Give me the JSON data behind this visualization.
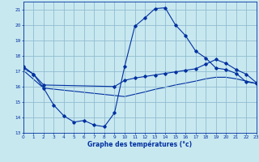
{
  "xlabel": "Graphe des températures (°c)",
  "bg_color": "#c8e8f0",
  "grid_color": "#90bcd0",
  "line_color": "#0030a0",
  "xlim": [
    0,
    23
  ],
  "ylim": [
    13,
    21.5
  ],
  "yticks": [
    13,
    14,
    15,
    16,
    17,
    18,
    19,
    20,
    21
  ],
  "xticks": [
    0,
    1,
    2,
    3,
    4,
    5,
    6,
    7,
    8,
    9,
    10,
    11,
    12,
    13,
    14,
    15,
    16,
    17,
    18,
    19,
    20,
    21,
    22,
    23
  ],
  "line1_x": [
    0,
    1,
    2,
    3,
    4,
    5,
    6,
    7,
    8,
    9,
    10,
    11,
    12,
    13,
    14,
    15,
    16,
    17,
    18,
    19,
    20,
    21,
    22,
    23
  ],
  "line1_y": [
    17.3,
    16.8,
    15.9,
    14.8,
    14.1,
    13.7,
    13.8,
    13.5,
    13.4,
    14.3,
    17.3,
    19.9,
    20.45,
    21.05,
    21.1,
    20.0,
    19.3,
    18.3,
    17.85,
    17.2,
    17.1,
    16.85,
    16.3,
    16.2
  ],
  "line2_x": [
    0,
    1,
    2,
    9,
    10,
    11,
    12,
    13,
    14,
    15,
    16,
    17,
    18,
    19,
    20,
    21,
    22,
    23
  ],
  "line2_y": [
    17.2,
    16.8,
    16.1,
    16.0,
    16.4,
    16.55,
    16.65,
    16.75,
    16.85,
    16.95,
    17.05,
    17.15,
    17.45,
    17.75,
    17.5,
    17.1,
    16.8,
    16.25
  ],
  "line3_x": [
    0,
    2,
    10,
    11,
    12,
    13,
    14,
    15,
    16,
    17,
    18,
    19,
    20,
    21,
    22,
    23
  ],
  "line3_y": [
    17.05,
    15.9,
    15.35,
    15.5,
    15.65,
    15.82,
    15.95,
    16.1,
    16.22,
    16.35,
    16.5,
    16.6,
    16.6,
    16.5,
    16.35,
    16.2
  ]
}
